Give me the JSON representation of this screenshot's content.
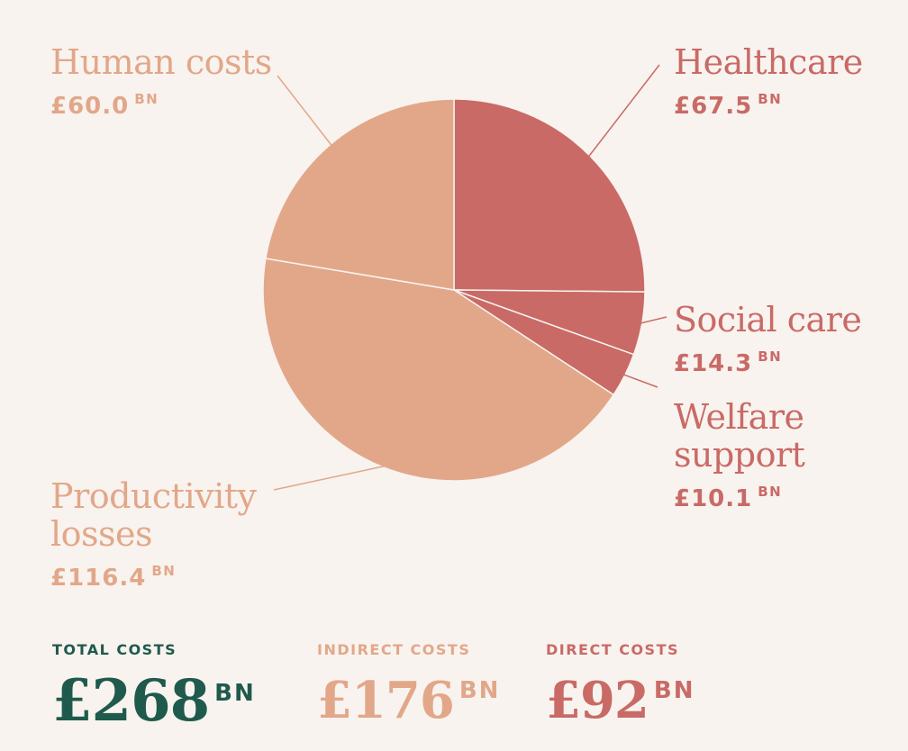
{
  "colors": {
    "direct": "#c96a66",
    "indirect": "#e2a789",
    "total": "#1f5a4c",
    "background": "#f8f3ef"
  },
  "chart_data": {
    "type": "pie",
    "unit": "BN",
    "currency": "£",
    "slices": [
      {
        "label": "Healthcare",
        "value": 67.5,
        "value_text": "£67.5",
        "group": "direct"
      },
      {
        "label": "Social care",
        "value": 14.3,
        "value_text": "£14.3",
        "group": "direct"
      },
      {
        "label": "Welfare\nsupport",
        "value": 10.1,
        "value_text": "£10.1",
        "group": "direct"
      },
      {
        "label": "Productivity\nlosses",
        "value": 116.4,
        "value_text": "£116.4",
        "group": "indirect"
      },
      {
        "label": "Human costs",
        "value": 60.0,
        "value_text": "£60.0",
        "group": "indirect"
      }
    ]
  },
  "summary": {
    "total": {
      "label": "TOTAL COSTS",
      "value": "£268",
      "unit": "BN"
    },
    "indirect": {
      "label": "INDIRECT COSTS",
      "value": "£176",
      "unit": "BN"
    },
    "direct": {
      "label": "DIRECT COSTS",
      "value": "£92",
      "unit": "BN"
    }
  }
}
